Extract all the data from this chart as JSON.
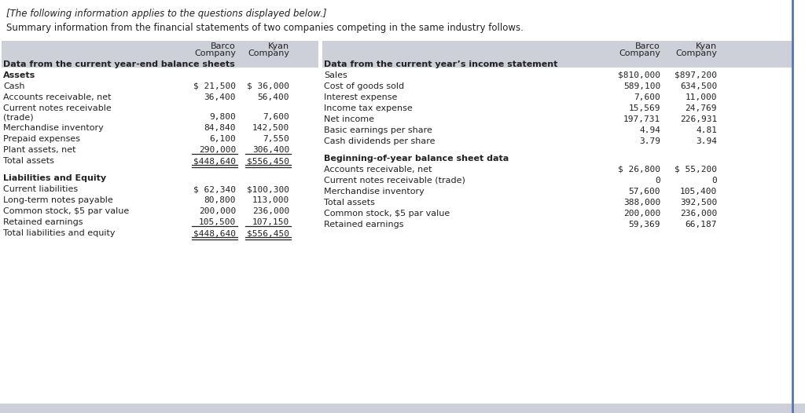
{
  "header_text": "[The following information applies to the questions displayed below.]",
  "subtitle": "Summary information from the financial statements of two companies competing in the same industry follows.",
  "bg_color": "#ffffff",
  "header_bg": "#cdd0d9",
  "left_table": {
    "section1_header": "Data from the current year-end balance sheets",
    "section1_sub": "Assets",
    "section1_rows": [
      [
        "Cash",
        "$ 21,500",
        "$ 36,000",
        false,
        false
      ],
      [
        "Accounts receivable, net",
        "36,400",
        "56,400",
        false,
        false
      ],
      [
        "Current notes receivable\n(trade)",
        "9,800",
        "7,600",
        false,
        false
      ],
      [
        "Merchandise inventory",
        "84,840",
        "142,500",
        false,
        false
      ],
      [
        "Prepaid expenses",
        "6,100",
        "7,550",
        false,
        false
      ],
      [
        "Plant assets, net",
        "290,000",
        "306,400",
        true,
        false
      ],
      [
        "Total assets",
        "$448,640",
        "$556,450",
        false,
        true
      ]
    ],
    "section2_header": "Liabilities and Equity",
    "section2_rows": [
      [
        "Current liabilities",
        "$ 62,340",
        "$100,300",
        false,
        false
      ],
      [
        "Long-term notes payable",
        "80,800",
        "113,000",
        false,
        false
      ],
      [
        "Common stock, $5 par value",
        "200,000",
        "236,000",
        false,
        false
      ],
      [
        "Retained earnings",
        "105,500",
        "107,150",
        true,
        false
      ],
      [
        "Total liabilities and equity",
        "$448,640",
        "$556,450",
        false,
        true
      ]
    ]
  },
  "right_table": {
    "section1_header": "Data from the current year’s income statement",
    "section1_rows": [
      [
        "Sales",
        "$810,000",
        "$897,200",
        false,
        false
      ],
      [
        "Cost of goods sold",
        "589,100",
        "634,500",
        false,
        false
      ],
      [
        "Interest expense",
        "7,600",
        "11,000",
        false,
        false
      ],
      [
        "Income tax expense",
        "15,569",
        "24,769",
        false,
        false
      ],
      [
        "Net income",
        "197,731",
        "226,931",
        false,
        false
      ],
      [
        "Basic earnings per share",
        "4.94",
        "4.81",
        false,
        false
      ],
      [
        "Cash dividends per share",
        "3.79",
        "3.94",
        false,
        false
      ]
    ],
    "section2_header": "Beginning-of-year balance sheet data",
    "section2_rows": [
      [
        "Accounts receivable, net",
        "$ 26,800",
        "$ 55,200",
        false,
        false
      ],
      [
        "Current notes receivable (trade)",
        "0",
        "0",
        false,
        false
      ],
      [
        "Merchandise inventory",
        "57,600",
        "105,400",
        false,
        false
      ],
      [
        "Total assets",
        "388,000",
        "392,500",
        false,
        false
      ],
      [
        "Common stock, $5 par value",
        "200,000",
        "236,000",
        false,
        false
      ],
      [
        "Retained earnings",
        "59,369",
        "66,187",
        false,
        false
      ]
    ]
  }
}
